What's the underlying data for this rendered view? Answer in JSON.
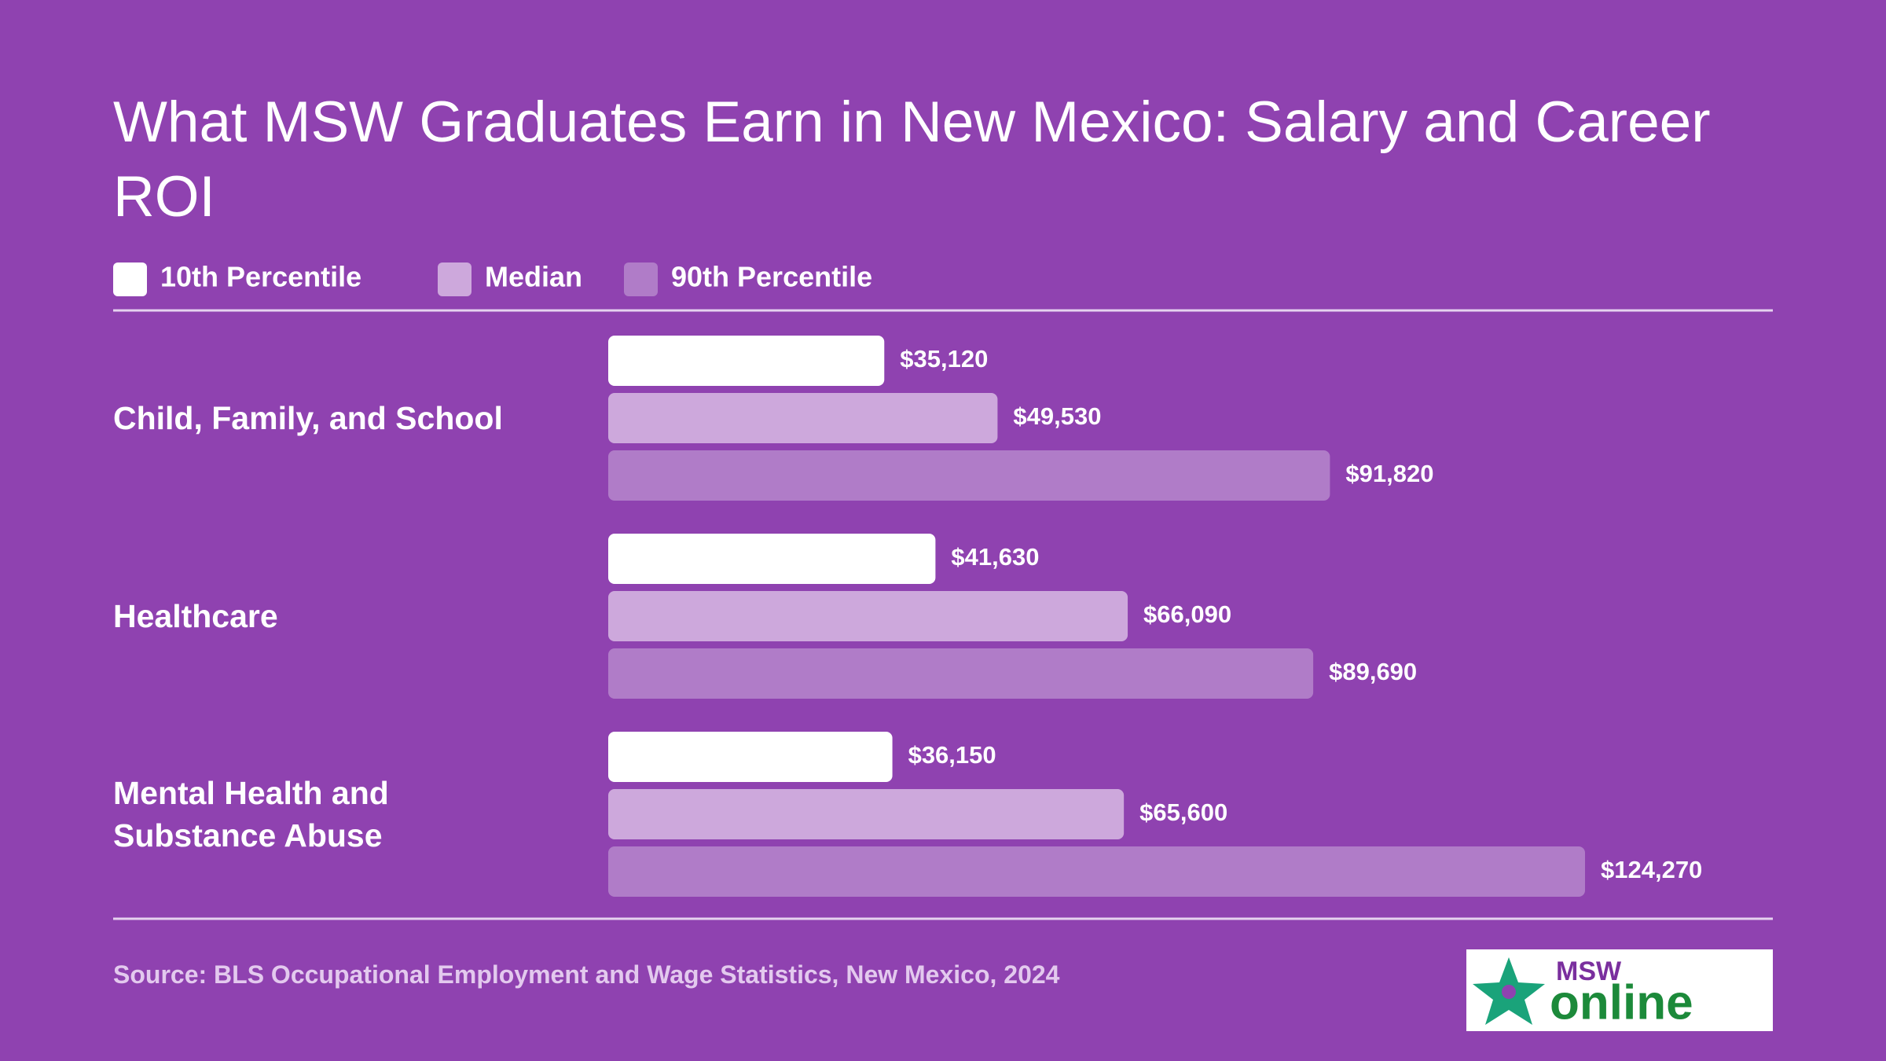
{
  "chart_data": {
    "type": "bar",
    "orientation": "horizontal",
    "title": "What MSW Graduates Earn in New Mexico: Salary and Career ROI",
    "categories": [
      "Child, Family, and School",
      "Healthcare",
      "Mental Health and Substance Abuse"
    ],
    "series": [
      {
        "name": "10th Percentile",
        "color": "#ffffff",
        "values": [
          35120,
          41630,
          36150
        ],
        "value_labels": [
          "$35,120",
          "$41,630",
          "$36,150"
        ]
      },
      {
        "name": "Median",
        "color": "#cda8dc",
        "values": [
          49530,
          66090,
          65600
        ],
        "value_labels": [
          "$49,530",
          "$66,090",
          "$65,600"
        ]
      },
      {
        "name": "90th Percentile",
        "color": "#b07cc8",
        "values": [
          91820,
          89690,
          124270
        ],
        "value_labels": [
          "$91,820",
          "$89,690",
          "$124,270"
        ]
      }
    ],
    "source": "Source: BLS Occupational Employment and Wage Statistics, New Mexico, 2024"
  },
  "logo": {
    "top": "MSW",
    "bottom": "online"
  }
}
